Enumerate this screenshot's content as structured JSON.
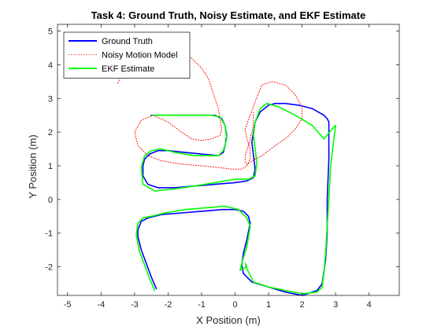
{
  "chart_data": {
    "type": "line",
    "title": "Task 4: Ground Truth, Noisy Estimate, and EKF Estimate",
    "xlabel": "X Position (m)",
    "ylabel": "Y Position (m)",
    "xlim": [
      -5.3,
      4.9
    ],
    "ylim": [
      -2.85,
      5.2
    ],
    "xticks": [
      -5,
      -4,
      -3,
      -2,
      -1,
      0,
      1,
      2,
      3,
      4
    ],
    "xtick_labels": [
      "-5",
      "-4",
      "-3",
      "-2",
      "-1",
      "0",
      "1",
      "2",
      "3",
      "4"
    ],
    "yticks": [
      -2,
      -1,
      0,
      1,
      2,
      3,
      4,
      5
    ],
    "ytick_labels": [
      "-2",
      "-1",
      "0",
      "1",
      "2",
      "3",
      "4",
      "5"
    ],
    "grid": false,
    "legend_position": "top-left",
    "series": [
      {
        "name": "Ground Truth",
        "color": "#0000ff",
        "style": "solid",
        "x": [
          -2.35,
          -2.5,
          -2.65,
          -2.8,
          -2.9,
          -2.9,
          -2.8,
          -2.6,
          -2.2,
          -1.6,
          -1.0,
          -0.4,
          0.0,
          0.25,
          0.4,
          0.45,
          0.35,
          0.25,
          0.2,
          0.25,
          0.5,
          1.0,
          1.5,
          2.0,
          2.45,
          2.6,
          2.7,
          2.75,
          2.75,
          2.8,
          2.8,
          2.8,
          2.75,
          2.65,
          2.3,
          1.9,
          1.5,
          1.2,
          1.0,
          0.75,
          0.6,
          0.55,
          0.5,
          0.55,
          0.6,
          0.55,
          0.35,
          0.0,
          -0.6,
          -1.2,
          -1.8,
          -2.3,
          -2.6,
          -2.75,
          -2.75,
          -2.7,
          -2.55,
          -2.3,
          -2.0,
          -1.5,
          -1.0,
          -0.5,
          -0.35,
          -0.3,
          -0.25,
          -0.3,
          -0.4,
          -0.6,
          -0.85,
          -1.1,
          -1.4,
          -1.8,
          -2.2,
          -2.5
        ],
        "y": [
          -2.65,
          -2.3,
          -1.9,
          -1.5,
          -1.1,
          -0.9,
          -0.65,
          -0.55,
          -0.45,
          -0.4,
          -0.35,
          -0.3,
          -0.3,
          -0.35,
          -0.5,
          -0.7,
          -1.2,
          -1.6,
          -1.95,
          -2.2,
          -2.45,
          -2.6,
          -2.75,
          -2.85,
          -2.7,
          -2.5,
          -1.8,
          -1.0,
          0.0,
          1.2,
          1.9,
          2.3,
          2.4,
          2.5,
          2.7,
          2.8,
          2.85,
          2.85,
          2.8,
          2.6,
          2.3,
          2.0,
          1.7,
          1.3,
          0.9,
          0.65,
          0.55,
          0.5,
          0.45,
          0.4,
          0.35,
          0.35,
          0.45,
          0.7,
          1.0,
          1.2,
          1.35,
          1.45,
          1.45,
          1.4,
          1.35,
          1.3,
          1.4,
          1.6,
          1.9,
          2.2,
          2.4,
          2.5,
          2.5,
          2.5,
          2.5,
          2.5,
          2.5,
          2.5
        ]
      },
      {
        "name": "Noisy Motion Model",
        "color": "#ff0000",
        "style": "dotted",
        "x": [
          -3.5,
          -3.3,
          -3.1,
          -2.85,
          -2.6,
          -2.3,
          -2.0,
          -1.7,
          -1.3,
          -1.0,
          -0.8,
          -0.7,
          -0.6,
          -0.5,
          -0.45,
          -0.4,
          -0.45,
          -0.7,
          -1.0,
          -1.3,
          -1.6,
          -2.0,
          -2.45,
          -2.8,
          -3.0,
          -2.9,
          -2.6,
          -2.2,
          -1.6,
          -1.0,
          -0.5,
          -0.1,
          0.2,
          0.35,
          0.45,
          0.45,
          0.35,
          0.3,
          0.45,
          0.6,
          0.8,
          1.1,
          1.5,
          1.8,
          2.0,
          2.0,
          1.8,
          1.5,
          1.2,
          1.0,
          0.8,
          0.6,
          0.45,
          0.35,
          0.3,
          0.3,
          0.4,
          0.55,
          0.55
        ],
        "y": [
          3.45,
          3.9,
          4.3,
          4.6,
          4.8,
          4.85,
          4.75,
          4.5,
          4.2,
          3.9,
          3.6,
          3.3,
          3.0,
          2.7,
          2.4,
          2.1,
          1.9,
          1.8,
          1.75,
          1.8,
          2.0,
          2.3,
          2.5,
          2.35,
          2.0,
          1.6,
          1.3,
          1.15,
          1.05,
          1.0,
          0.95,
          0.9,
          0.9,
          1.0,
          1.2,
          1.5,
          1.8,
          2.1,
          2.5,
          2.9,
          3.4,
          3.5,
          3.4,
          3.1,
          2.75,
          2.4,
          2.1,
          1.8,
          1.6,
          1.45,
          1.3,
          1.2,
          1.1,
          1.05,
          1.1,
          1.3,
          1.6,
          2.2,
          2.6
        ]
      },
      {
        "name": "EKF Estimate",
        "color": "#00ff00",
        "style": "solid",
        "x": [
          -2.4,
          -2.55,
          -2.7,
          -2.85,
          -2.95,
          -2.9,
          -2.75,
          -2.5,
          -2.1,
          -1.5,
          -0.9,
          -0.3,
          0.1,
          0.35,
          0.45,
          0.35,
          0.2,
          0.15,
          0.25,
          0.35,
          0.3,
          0.35,
          0.55,
          1.0,
          1.5,
          2.0,
          2.45,
          2.6,
          2.65,
          2.7,
          2.75,
          2.8,
          2.85,
          2.95,
          3.0,
          2.9,
          2.65,
          2.3,
          1.8,
          1.3,
          0.95,
          0.75,
          0.6,
          0.55,
          0.6,
          0.65,
          0.6,
          0.4,
          0.0,
          -0.6,
          -1.2,
          -1.9,
          -2.4,
          -2.75,
          -2.8,
          -2.7,
          -2.5,
          -2.2,
          -1.8,
          -1.2,
          -0.8,
          -0.5,
          -0.35,
          -0.25,
          -0.3,
          -0.45,
          -0.7,
          -1.0,
          -1.4,
          -1.8,
          -2.2,
          -2.45
        ],
        "y": [
          -2.7,
          -2.35,
          -1.95,
          -1.55,
          -1.05,
          -0.7,
          -0.55,
          -0.5,
          -0.4,
          -0.3,
          -0.25,
          -0.2,
          -0.3,
          -0.55,
          -0.8,
          -1.4,
          -1.9,
          -2.1,
          -2.05,
          -2.0,
          -1.9,
          -2.05,
          -2.45,
          -2.6,
          -2.7,
          -2.8,
          -2.75,
          -2.6,
          -2.2,
          -1.6,
          -0.8,
          0.0,
          1.0,
          1.8,
          2.2,
          2.1,
          1.8,
          2.2,
          2.5,
          2.75,
          2.85,
          2.7,
          2.3,
          1.9,
          1.5,
          1.1,
          0.7,
          0.6,
          0.6,
          0.5,
          0.4,
          0.3,
          0.25,
          0.45,
          0.95,
          1.3,
          1.45,
          1.5,
          1.4,
          1.3,
          1.3,
          1.3,
          1.45,
          1.8,
          2.2,
          2.45,
          2.5,
          2.5,
          2.5,
          2.5,
          2.5,
          2.5
        ]
      }
    ]
  }
}
